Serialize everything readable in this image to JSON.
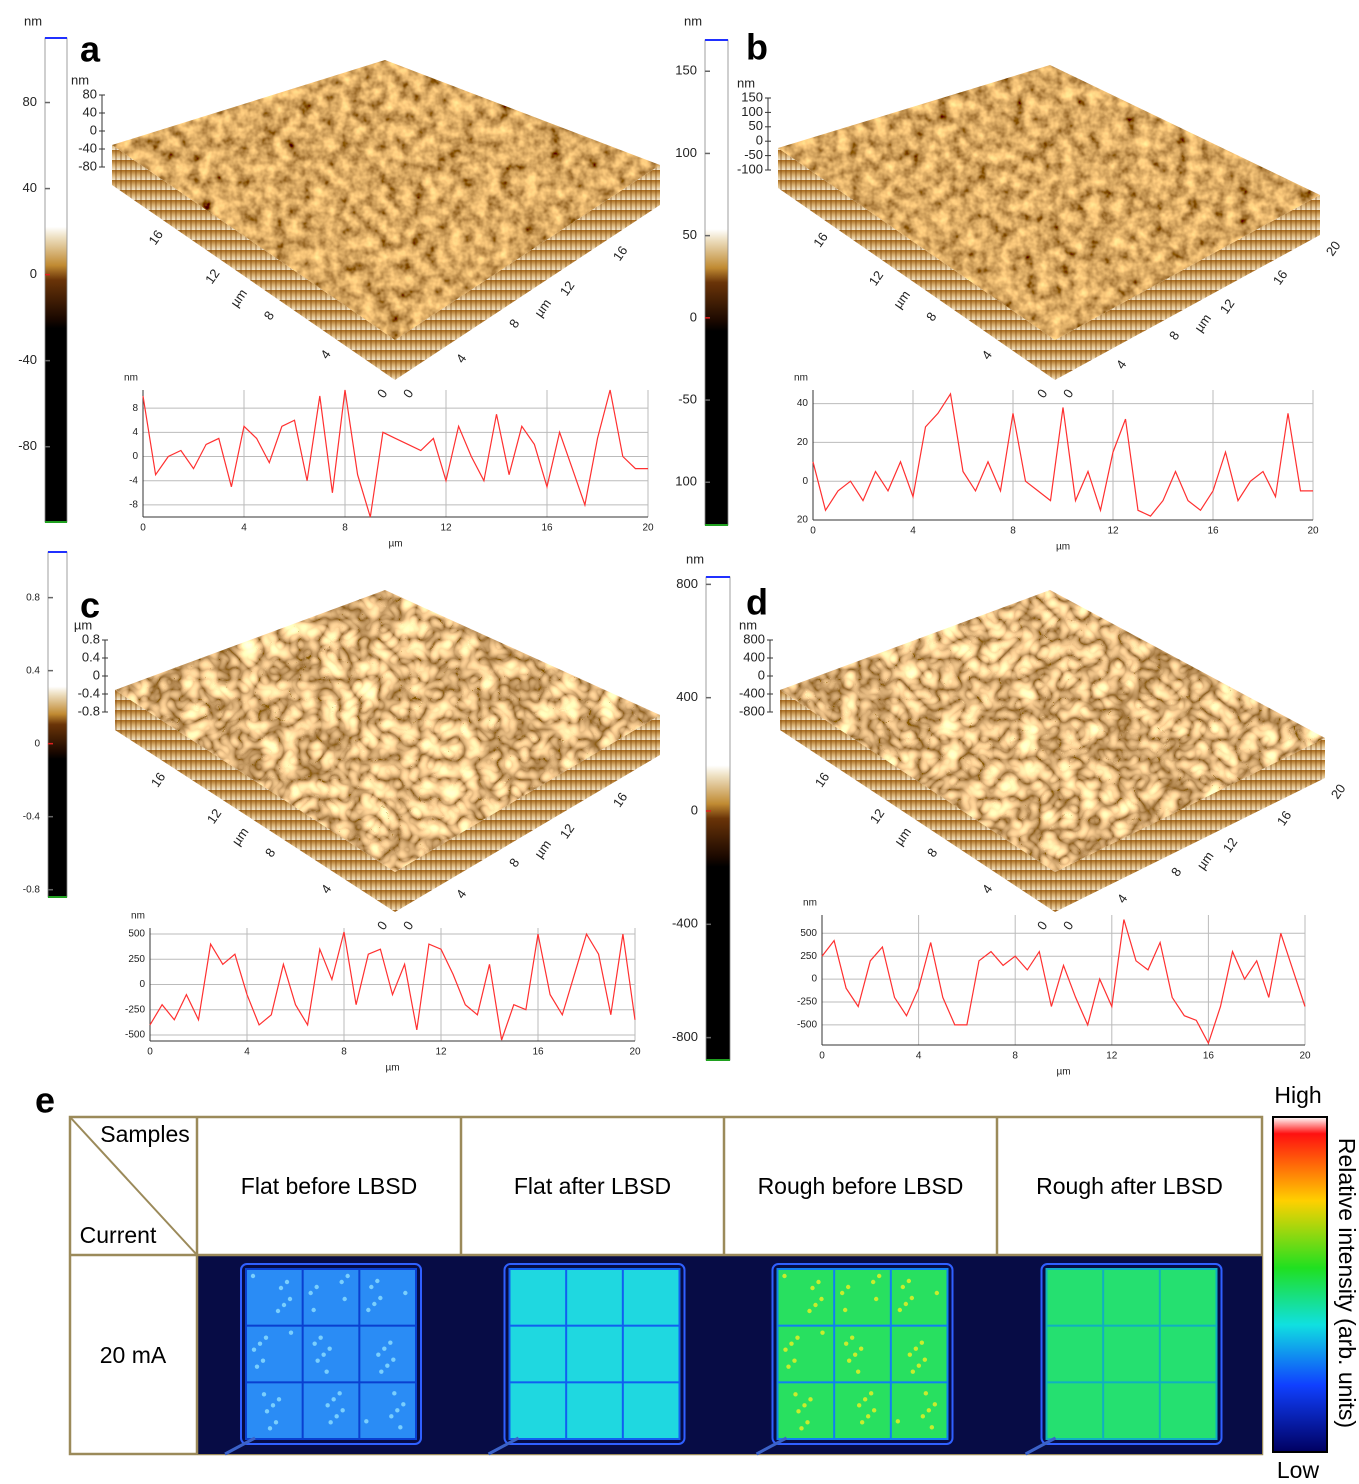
{
  "panels": [
    {
      "label": "a",
      "colorbar": {
        "unit": "nm",
        "lim": [
          110,
          -115
        ],
        "ticks": [
          80,
          40,
          0,
          -40,
          -80
        ]
      },
      "surface": {
        "unit": "nm",
        "zticks": [
          80,
          40,
          0,
          -40,
          -80
        ],
        "left_ticks": [
          0,
          4,
          8,
          12,
          16
        ],
        "right_ticks": [
          0,
          4,
          8,
          12,
          16
        ],
        "axis_label": "µm"
      }
    },
    {
      "label": "b",
      "colorbar": {
        "unit": "nm",
        "lim": [
          169,
          -126
        ],
        "ticks": [
          150,
          100,
          50,
          0,
          -50,
          {
            "value": -100,
            "label": "100"
          }
        ]
      },
      "surface": {
        "unit": "nm",
        "zticks": [
          150,
          100,
          50,
          0,
          -50,
          -100
        ],
        "left_ticks": [
          0,
          4,
          8,
          12,
          16
        ],
        "right_ticks": [
          0,
          4,
          8,
          12,
          16,
          20
        ],
        "axis_label": "µm"
      }
    },
    {
      "label": "c",
      "colorbar": {
        "lim": [
          1.05,
          -0.84
        ],
        "ticks": [
          0.8,
          0.4,
          0,
          -0.4,
          -0.8
        ]
      },
      "surface": {
        "unit": "µm",
        "zticks": [
          0.8,
          0.4,
          0,
          -0.4,
          -0.8
        ],
        "left_ticks": [
          0,
          4,
          8,
          12,
          16
        ],
        "right_ticks": [
          0,
          4,
          8,
          12,
          16
        ],
        "axis_label": "µm"
      }
    },
    {
      "label": "d",
      "colorbar": {
        "unit": "nm",
        "lim": [
          826,
          -879
        ],
        "ticks": [
          800,
          400,
          0,
          -400,
          -800
        ]
      },
      "surface": {
        "unit": "nm",
        "zticks": [
          800,
          400,
          0,
          -400,
          -800
        ],
        "left_ticks": [
          0,
          4,
          8,
          12,
          16
        ],
        "right_ticks": [
          0,
          4,
          8,
          12,
          16,
          20
        ],
        "axis_label": "µm"
      }
    }
  ],
  "chart_data": [
    {
      "type": "line",
      "ylabel": "nm",
      "xlabel": "µm",
      "x": [
        0,
        0.5,
        1,
        1.5,
        2,
        2.5,
        3,
        3.5,
        4,
        4.5,
        5,
        5.5,
        6,
        6.5,
        7,
        7.5,
        8,
        8.5,
        9,
        9.5,
        10,
        10.5,
        11,
        11.5,
        12,
        12.5,
        13,
        13.5,
        14,
        14.5,
        15,
        15.5,
        16,
        16.5,
        17,
        17.5,
        18,
        18.5,
        19,
        19.5,
        20
      ],
      "series": [
        {
          "color": "#ff3030",
          "values": [
            10,
            -3,
            0,
            1,
            -2,
            2,
            3,
            -5,
            5,
            3,
            -1,
            5,
            6,
            -4,
            10,
            -6,
            11,
            -3,
            -10,
            4,
            3,
            2,
            1,
            3,
            -4,
            5,
            0,
            -4,
            7,
            -3,
            5,
            2,
            -5,
            4,
            -2,
            -8,
            3,
            11,
            0,
            -2,
            -2
          ]
        }
      ],
      "xlim": [
        0,
        20
      ],
      "ylim": [
        -10,
        11
      ],
      "xticks": [
        0,
        4,
        8,
        12,
        16,
        20
      ],
      "yticks": [
        8,
        4,
        0,
        -4,
        -8
      ],
      "grid": true
    },
    {
      "type": "line",
      "ylabel": "nm",
      "xlabel": "µm",
      "x": [
        0,
        0.5,
        1,
        1.5,
        2,
        2.5,
        3,
        3.5,
        4,
        4.5,
        5,
        5.5,
        6,
        6.5,
        7,
        7.5,
        8,
        8.5,
        9,
        9.5,
        10,
        10.5,
        11,
        11.5,
        12,
        12.5,
        13,
        13.5,
        14,
        14.5,
        15,
        15.5,
        16,
        16.5,
        17,
        17.5,
        18,
        18.5,
        19,
        19.5,
        20
      ],
      "series": [
        {
          "color": "#ff3030",
          "values": [
            10,
            -15,
            -5,
            0,
            -10,
            5,
            -5,
            10,
            -8,
            28,
            35,
            45,
            5,
            -5,
            10,
            -5,
            35,
            0,
            -5,
            -10,
            38,
            -10,
            5,
            -15,
            15,
            32,
            -15,
            -18,
            -10,
            5,
            -10,
            -15,
            -5,
            15,
            -10,
            0,
            5,
            -8,
            35,
            -5,
            -5
          ]
        }
      ],
      "xlim": [
        0,
        20
      ],
      "ylim": [
        -20,
        47
      ],
      "xticks": [
        0,
        4,
        8,
        12,
        16,
        20
      ],
      "yticks": [
        40,
        20,
        0,
        {
          "value": -20,
          "label": "20"
        }
      ],
      "grid": true
    },
    {
      "type": "line",
      "ylabel": "nm",
      "xlabel": "µm",
      "x": [
        0,
        0.5,
        1,
        1.5,
        2,
        2.5,
        3,
        3.5,
        4,
        4.5,
        5,
        5.5,
        6,
        6.5,
        7,
        7.5,
        8,
        8.5,
        9,
        9.5,
        10,
        10.5,
        11,
        11.5,
        12,
        12.5,
        13,
        13.5,
        14,
        14.5,
        15,
        15.5,
        16,
        16.5,
        17,
        17.5,
        18,
        18.5,
        19,
        19.5,
        20
      ],
      "series": [
        {
          "color": "#ff3030",
          "values": [
            -400,
            -200,
            -350,
            -100,
            -350,
            400,
            200,
            300,
            -100,
            -400,
            -300,
            200,
            -200,
            -400,
            350,
            50,
            520,
            -200,
            300,
            350,
            -100,
            200,
            -450,
            400,
            350,
            100,
            -200,
            -300,
            200,
            -550,
            -200,
            -250,
            500,
            -100,
            -300,
            100,
            500,
            300,
            -300,
            500,
            -350
          ]
        }
      ],
      "xlim": [
        0,
        20
      ],
      "ylim": [
        -560,
        560
      ],
      "xticks": [
        0,
        4,
        8,
        12,
        16,
        20
      ],
      "yticks": [
        500,
        250,
        0,
        -250,
        -500
      ],
      "grid": true
    },
    {
      "type": "line",
      "ylabel": "nm",
      "xlabel": "µm",
      "x": [
        0,
        0.5,
        1,
        1.5,
        2,
        2.5,
        3,
        3.5,
        4,
        4.5,
        5,
        5.5,
        6,
        6.5,
        7,
        7.5,
        8,
        8.5,
        9,
        9.5,
        10,
        10.5,
        11,
        11.5,
        12,
        12.5,
        13,
        13.5,
        14,
        14.5,
        15,
        15.5,
        16,
        16.5,
        17,
        17.5,
        18,
        18.5,
        19,
        19.5,
        20
      ],
      "series": [
        {
          "color": "#ff3030",
          "values": [
            250,
            420,
            -100,
            -300,
            200,
            350,
            -200,
            -400,
            -100,
            400,
            -200,
            -500,
            -500,
            200,
            300,
            150,
            250,
            100,
            300,
            -300,
            150,
            -200,
            -500,
            0,
            -300,
            650,
            200,
            100,
            400,
            -200,
            -400,
            -450,
            -700,
            -300,
            300,
            0,
            200,
            -200,
            500,
            100,
            -300
          ]
        }
      ],
      "xlim": [
        0,
        20
      ],
      "ylim": [
        -720,
        700
      ],
      "xticks": [
        0,
        4,
        8,
        12,
        16,
        20
      ],
      "yticks": [
        500,
        250,
        0,
        -250,
        -500
      ],
      "grid": true
    }
  ],
  "table": {
    "label": "e",
    "corner_top": "Samples",
    "corner_bottom": "Current",
    "columns": [
      "Flat before LBSD",
      "Flat after LBSD",
      "Rough before LBSD",
      "Rough after LBSD"
    ],
    "row": "20 mA"
  },
  "intensity_bar": {
    "high": "High",
    "low": "Low",
    "title": "Relative intensity (arb. units)"
  }
}
